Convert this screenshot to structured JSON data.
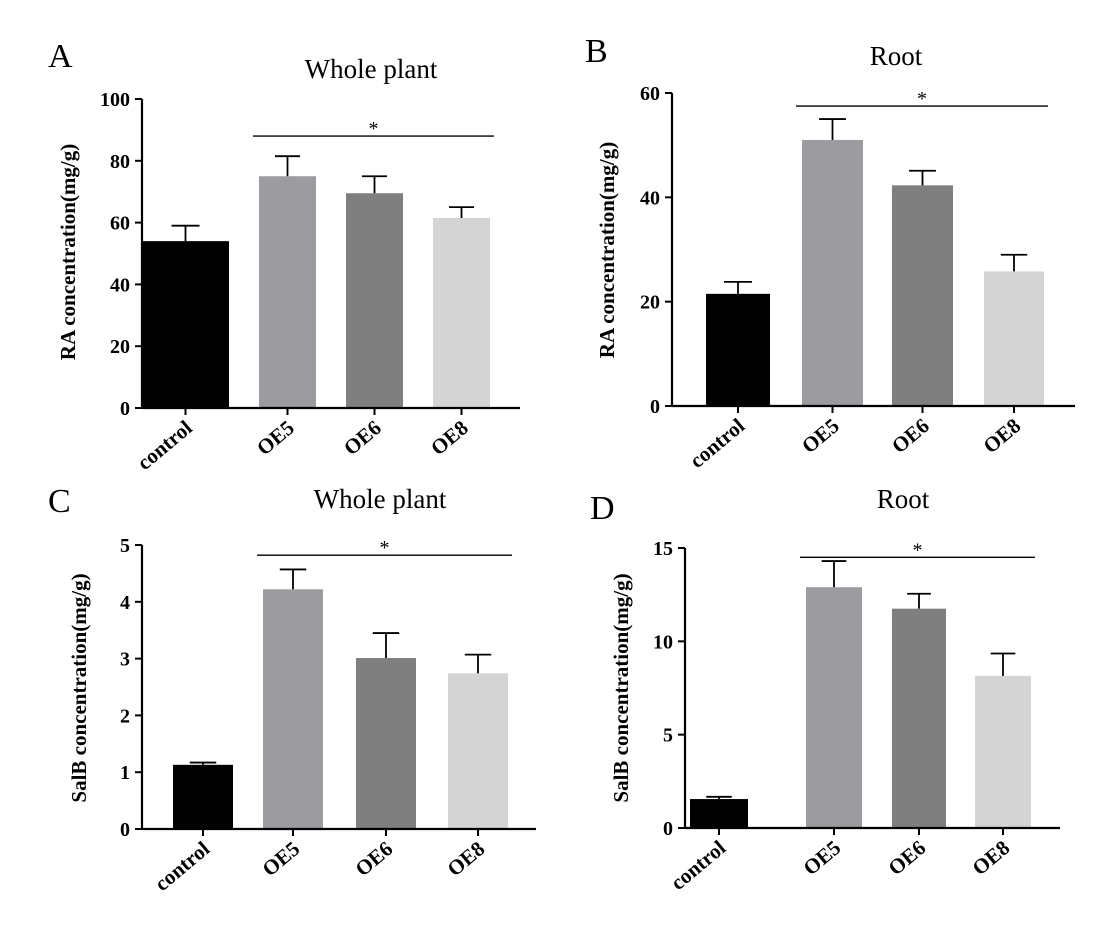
{
  "chart_data": [
    {
      "type": "bar",
      "panel": "A",
      "title": "Whole plant",
      "xlabel": "",
      "ylabel": "RA concentration(mg/g)",
      "categories": [
        "control",
        "OE5",
        "OE6",
        "OE8"
      ],
      "values": [
        54,
        75,
        69.5,
        61.5
      ],
      "errors": [
        5,
        6.5,
        5.5,
        3.5
      ],
      "colors": [
        "#000000",
        "#9c9ca0",
        "#7f7f7f",
        "#d4d4d4"
      ],
      "ylim": [
        0,
        100
      ],
      "yticks": [
        "0",
        "20",
        "40",
        "60",
        "80",
        "100"
      ],
      "ytick_values": [
        0,
        20,
        40,
        60,
        80,
        100
      ],
      "significance": {
        "label": "*",
        "from": "OE5",
        "to": "OE8",
        "y": 88
      }
    },
    {
      "type": "bar",
      "panel": "B",
      "title": "Root",
      "xlabel": "",
      "ylabel": "RA concentration(mg/g)",
      "categories": [
        "control",
        "OE5",
        "OE6",
        "OE8"
      ],
      "values": [
        21.5,
        51,
        42.3,
        25.8
      ],
      "errors": [
        2.3,
        4,
        2.8,
        3.2
      ],
      "colors": [
        "#000000",
        "#9c9ca0",
        "#7f7f7f",
        "#d4d4d4"
      ],
      "ylim": [
        0,
        60
      ],
      "yticks": [
        "0",
        "20",
        "40",
        "60"
      ],
      "ytick_values": [
        0,
        20,
        40,
        60
      ],
      "significance": {
        "label": "*",
        "from": "OE5",
        "to": "OE8",
        "y": 57.5
      }
    },
    {
      "type": "bar",
      "panel": "C",
      "title": "Whole plant",
      "xlabel": "",
      "ylabel": "SalB concentration(mg/g)",
      "categories": [
        "control",
        "OE5",
        "OE6",
        "OE8"
      ],
      "values": [
        1.13,
        4.22,
        3.01,
        2.74
      ],
      "errors": [
        0.04,
        0.35,
        0.44,
        0.33
      ],
      "colors": [
        "#000000",
        "#9c9ca0",
        "#7f7f7f",
        "#d4d4d4"
      ],
      "ylim": [
        0,
        5
      ],
      "yticks": [
        "0",
        "1",
        "2",
        "3",
        "4",
        "5"
      ],
      "ytick_values": [
        0,
        1,
        2,
        3,
        4,
        5
      ],
      "significance": {
        "label": "*",
        "from": "OE5",
        "to": "OE8",
        "y": 4.82
      }
    },
    {
      "type": "bar",
      "panel": "D",
      "title": "Root",
      "xlabel": "",
      "ylabel": "SalB concentration(mg/g)",
      "categories": [
        "control",
        "OE5",
        "OE6",
        "OE8"
      ],
      "values": [
        1.55,
        12.9,
        11.75,
        8.15
      ],
      "errors": [
        0.12,
        1.4,
        0.8,
        1.2
      ],
      "colors": [
        "#000000",
        "#9c9ca0",
        "#7f7f7f",
        "#d4d4d4"
      ],
      "ylim": [
        0,
        15
      ],
      "yticks": [
        "0",
        "5",
        "10",
        "15"
      ],
      "ytick_values": [
        0,
        5,
        10,
        15
      ],
      "significance": {
        "label": "*",
        "from": "OE5",
        "to": "OE8",
        "y": 14.5
      }
    }
  ]
}
